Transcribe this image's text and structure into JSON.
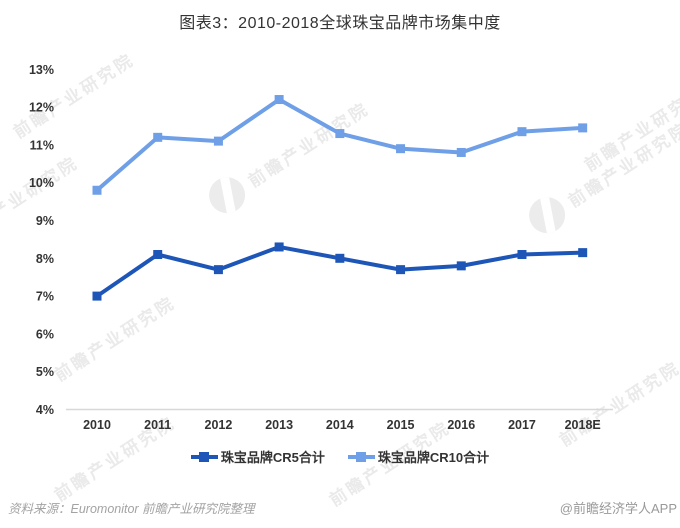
{
  "title": "图表3：2010-2018全球珠宝品牌市场集中度",
  "watermark": {
    "text": "前瞻产业研究院"
  },
  "footer": {
    "source": "资料来源：Euromonitor 前瞻产业研究院整理",
    "credit": "@前瞻经济学人APP"
  },
  "colors": {
    "cr5": "#1e56b8",
    "cr10": "#6f9fe6",
    "axis": "#d8d8d8",
    "tick_text": "#333333",
    "watermark": "#eaeaea"
  },
  "chart_data": {
    "type": "line",
    "title": "图表3：2010-2018全球珠宝品牌市场集中度",
    "categories": [
      "2010",
      "2011",
      "2012",
      "2013",
      "2014",
      "2015",
      "2016",
      "2017",
      "2018E"
    ],
    "series": [
      {
        "name": "珠宝品牌CR5合计",
        "color": "#1e56b8",
        "values": [
          7.0,
          8.1,
          7.7,
          8.3,
          8.0,
          7.7,
          7.8,
          8.1,
          8.15
        ]
      },
      {
        "name": "珠宝品牌CR10合计",
        "color": "#6f9fe6",
        "values": [
          9.8,
          11.2,
          11.1,
          12.2,
          11.3,
          10.9,
          10.8,
          11.35,
          11.45
        ]
      }
    ],
    "ylabel": "",
    "xlabel": "",
    "ylim": [
      4,
      13
    ],
    "yticks": [
      4,
      5,
      6,
      7,
      8,
      9,
      10,
      11,
      12,
      13
    ],
    "ytick_suffix": "%",
    "grid": false,
    "legend_position": "bottom",
    "marker": "square"
  }
}
